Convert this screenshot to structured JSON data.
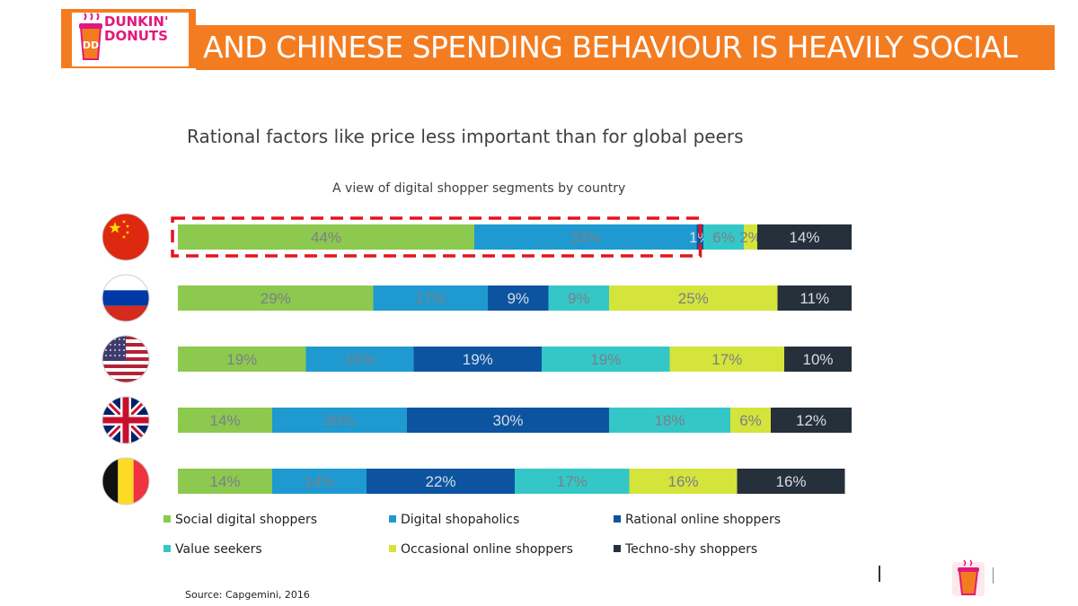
{
  "header": {
    "logo_line1": "DUNKIN'",
    "logo_line2": "DONUTS",
    "title": "AND CHINESE SPENDING BEHAVIOUR IS HEAVILY SOCIAL"
  },
  "subtitle": "Rational factors like price less important than for global peers",
  "source": "Source: Capgemini, 2016",
  "colors": {
    "brand_orange": "#f47c20",
    "brand_pink": "#e2187b",
    "highlight": "#e5141c"
  },
  "chart_data": {
    "type": "bar",
    "orientation": "horizontal",
    "stacked": true,
    "title": "A view of digital shopper segments by country",
    "categories": [
      "China",
      "Russia",
      "USA",
      "UK",
      "Belgium"
    ],
    "flag_icons": [
      "china-flag-icon",
      "russia-flag-icon",
      "usa-flag-icon",
      "uk-flag-icon",
      "belgium-flag-icon"
    ],
    "series": [
      {
        "name": "Social digital shoppers",
        "color": "#8dc84f",
        "values": [
          44,
          29,
          19,
          14,
          14
        ],
        "labels": [
          "44%",
          "29%",
          "19%",
          "14%",
          "14%"
        ]
      },
      {
        "name": "Digital shopaholics",
        "color": "#1e9ad0",
        "values": [
          33,
          17,
          16,
          20,
          14
        ],
        "labels": [
          "33%",
          "17%",
          "16%",
          "20%",
          "14%"
        ]
      },
      {
        "name": "Rational online shoppers",
        "color": "#0c54a0",
        "values": [
          1,
          9,
          19,
          30,
          22
        ],
        "labels": [
          "1%",
          "9%",
          "19%",
          "30%",
          "22%"
        ]
      },
      {
        "name": "Value seekers",
        "color": "#35c7c7",
        "values": [
          6,
          9,
          19,
          18,
          17
        ],
        "labels": [
          "6%",
          "9%",
          "19%",
          "18%",
          "17%"
        ]
      },
      {
        "name": "Occasional online shoppers",
        "color": "#d4e43a",
        "values": [
          2,
          25,
          17,
          6,
          16
        ],
        "labels": [
          "2%",
          "25%",
          "17%",
          "6%",
          "16%"
        ]
      },
      {
        "name": "Techno-shy shoppers",
        "color": "#25303b",
        "values": [
          14,
          11,
          10,
          12,
          16
        ],
        "labels": [
          "14%",
          "11%",
          "10%",
          "12%",
          "16%"
        ]
      }
    ],
    "xlim": [
      0,
      100
    ],
    "highlight": {
      "category": "China",
      "series": [
        "Social digital shoppers",
        "Digital shopaholics"
      ]
    }
  }
}
